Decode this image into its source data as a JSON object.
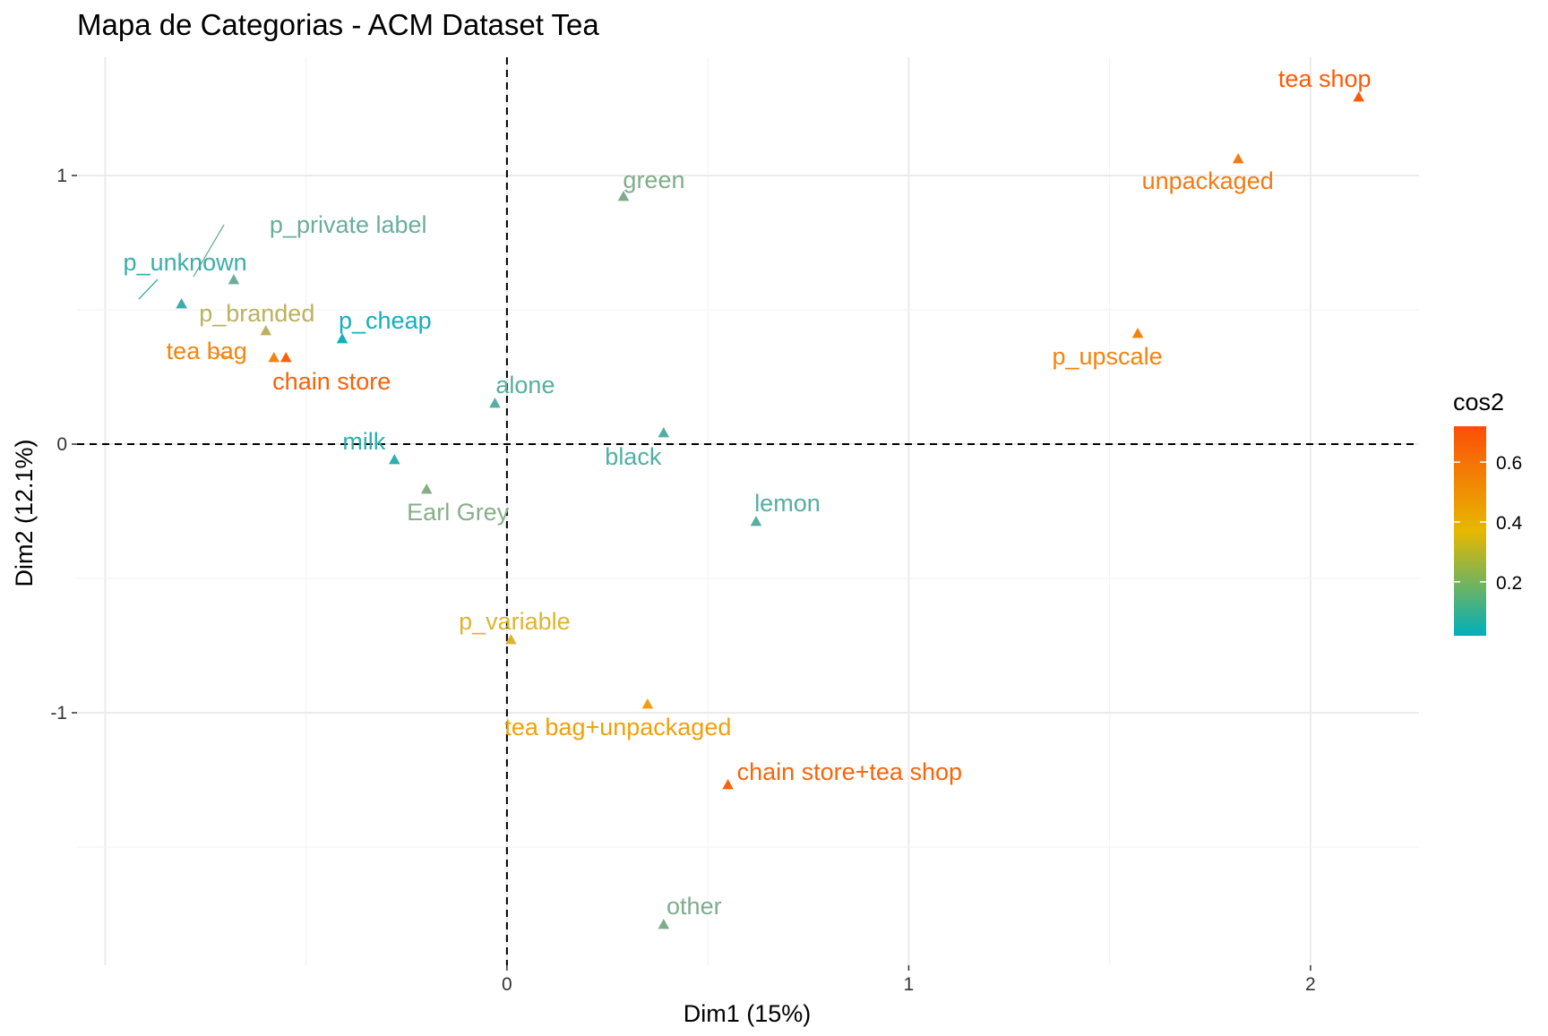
{
  "chart_data": {
    "type": "scatter",
    "title": "Mapa de Categorias - ACM Dataset Tea",
    "xlabel": "Dim1 (15%)",
    "ylabel": "Dim2 (12.1%)",
    "xlim": [
      -1.07,
      2.27
    ],
    "ylim": [
      -1.94,
      1.44
    ],
    "x_ticks": [
      0,
      1,
      2
    ],
    "x_tick_labels": [
      "0",
      "1",
      "2"
    ],
    "y_ticks": [
      1,
      0,
      -1
    ],
    "y_tick_labels": [
      "1",
      "0",
      "-1"
    ],
    "grid": true,
    "reference_lines": {
      "x": 0,
      "y": 0,
      "style": "dashed"
    },
    "marker": "triangle",
    "color_scale": {
      "title": "cos2",
      "min": 0.02,
      "max": 0.72,
      "ticks": [
        0.2,
        0.4,
        0.6
      ],
      "tick_labels": [
        "0.2",
        "0.4",
        "0.6"
      ],
      "colors": [
        "#00AFBB",
        "#E7B800",
        "#FC4E07"
      ],
      "legend_position": "right"
    },
    "points": [
      {
        "label": "tea shop",
        "x": 2.12,
        "y": 1.29,
        "cos2": 0.71,
        "color": "#FC5A09"
      },
      {
        "label": "unpackaged",
        "x": 1.82,
        "y": 1.06,
        "cos2": 0.62,
        "color": "#F47A12"
      },
      {
        "label": "green",
        "x": 0.29,
        "y": 0.92,
        "cos2": 0.12,
        "color": "#7FAD8C"
      },
      {
        "label": "p_private label",
        "x": -0.68,
        "y": 0.61,
        "cos2": 0.1,
        "color": "#6AAE9A"
      },
      {
        "label": "p_unknown",
        "x": -0.81,
        "y": 0.52,
        "cos2": 0.06,
        "color": "#3AAEAA"
      },
      {
        "label": "p_branded",
        "x": -0.6,
        "y": 0.42,
        "cos2": 0.25,
        "color": "#BCB15E"
      },
      {
        "label": "p_cheap",
        "x": -0.41,
        "y": 0.39,
        "cos2": 0.02,
        "color": "#12B0BA"
      },
      {
        "label": "tea bag",
        "x": -0.58,
        "y": 0.32,
        "cos2": 0.56,
        "color": "#F3840F"
      },
      {
        "label": "chain store",
        "x": -0.55,
        "y": 0.32,
        "cos2": 0.68,
        "color": "#F9600A"
      },
      {
        "label": "p_upscale",
        "x": 1.57,
        "y": 0.41,
        "cos2": 0.57,
        "color": "#F4820F"
      },
      {
        "label": "alone",
        "x": -0.03,
        "y": 0.15,
        "cos2": 0.08,
        "color": "#57AEA1"
      },
      {
        "label": "black",
        "x": 0.39,
        "y": 0.04,
        "cos2": 0.08,
        "color": "#52AEA4"
      },
      {
        "label": "milk",
        "x": -0.28,
        "y": -0.06,
        "cos2": 0.05,
        "color": "#2CAFB0"
      },
      {
        "label": "Earl Grey",
        "x": -0.2,
        "y": -0.17,
        "cos2": 0.13,
        "color": "#88AE88"
      },
      {
        "label": "lemon",
        "x": 0.62,
        "y": -0.29,
        "cos2": 0.08,
        "color": "#55AEA2"
      },
      {
        "label": "p_variable",
        "x": 0.01,
        "y": -0.73,
        "cos2": 0.38,
        "color": "#DDB52C"
      },
      {
        "label": "tea bag+unpackaged",
        "x": 0.35,
        "y": -0.97,
        "cos2": 0.48,
        "color": "#F1A00C"
      },
      {
        "label": "chain store+tea shop",
        "x": 0.55,
        "y": -1.27,
        "cos2": 0.67,
        "color": "#F9640A"
      },
      {
        "label": "other",
        "x": 0.39,
        "y": -1.79,
        "cos2": 0.12,
        "color": "#7DAD8D"
      }
    ]
  }
}
